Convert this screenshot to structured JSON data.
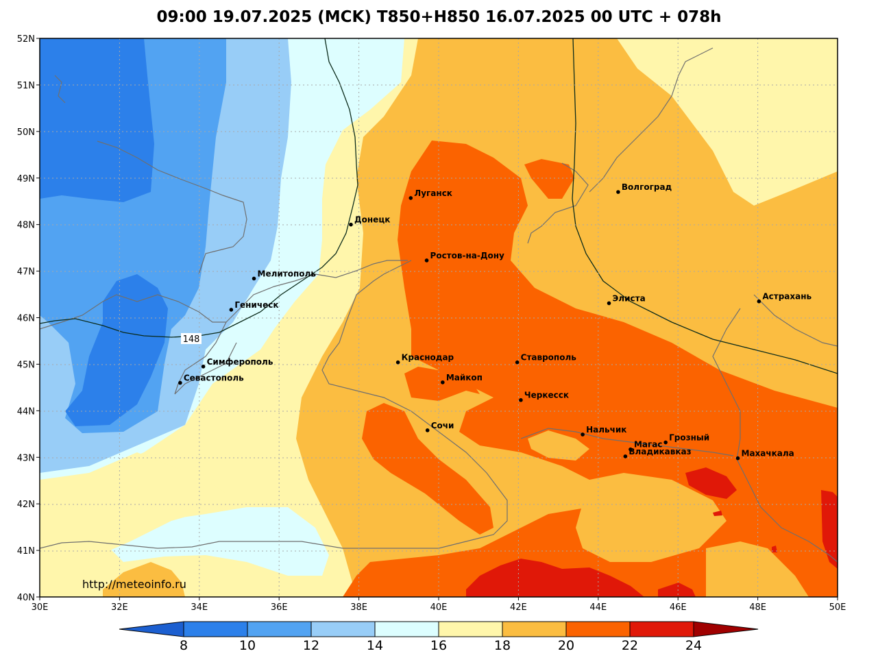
{
  "title": "09:00 19.07.2025 (MCK) T850+H850 16.07.2025 00 UTC + 078h",
  "watermark": "http://meteoinfo.ru",
  "map": {
    "lon_range": [
      30,
      50
    ],
    "lat_range": [
      40,
      52
    ],
    "lon_ticks": [
      "30E",
      "32E",
      "34E",
      "36E",
      "38E",
      "40E",
      "42E",
      "44E",
      "46E",
      "48E",
      "50E"
    ],
    "lat_ticks": [
      "40N",
      "41N",
      "42N",
      "43N",
      "44N",
      "45N",
      "46N",
      "47N",
      "48N",
      "49N",
      "50N",
      "51N",
      "52N"
    ],
    "grid": true,
    "contour_label": "148"
  },
  "cities": [
    {
      "name": "Луганск",
      "lon": 39.3,
      "lat": 48.57
    },
    {
      "name": "Волгоград",
      "lon": 44.5,
      "lat": 48.7
    },
    {
      "name": "Донецк",
      "lon": 37.8,
      "lat": 48.0
    },
    {
      "name": "Ростов-на-Дону",
      "lon": 39.7,
      "lat": 47.23
    },
    {
      "name": "Мелитополь",
      "lon": 35.37,
      "lat": 46.84
    },
    {
      "name": "Геническ",
      "lon": 34.8,
      "lat": 46.17
    },
    {
      "name": "Элиста",
      "lon": 44.27,
      "lat": 46.31
    },
    {
      "name": "Астрахань",
      "lon": 48.03,
      "lat": 46.35
    },
    {
      "name": "Симферополь",
      "lon": 34.1,
      "lat": 44.95
    },
    {
      "name": "Краснодар",
      "lon": 38.98,
      "lat": 45.04
    },
    {
      "name": "Ставрополь",
      "lon": 41.97,
      "lat": 45.04
    },
    {
      "name": "Севастополь",
      "lon": 33.52,
      "lat": 44.6
    },
    {
      "name": "Майкоп",
      "lon": 40.1,
      "lat": 44.61
    },
    {
      "name": "Черкесск",
      "lon": 42.06,
      "lat": 44.23
    },
    {
      "name": "Сочи",
      "lon": 39.72,
      "lat": 43.58
    },
    {
      "name": "Нальчик",
      "lon": 43.61,
      "lat": 43.49
    },
    {
      "name": "Грозный",
      "lon": 45.69,
      "lat": 43.32
    },
    {
      "name": "Магас",
      "lon": 44.81,
      "lat": 43.17
    },
    {
      "name": "Владикавказ",
      "lon": 44.68,
      "lat": 43.02
    },
    {
      "name": "Махачкала",
      "lon": 47.5,
      "lat": 42.98
    }
  ],
  "colorbar": {
    "labels": [
      "8",
      "10",
      "12",
      "14",
      "16",
      "18",
      "20",
      "22",
      "24"
    ],
    "colors": [
      "#1c5fd0",
      "#2c80ea",
      "#52a3f2",
      "#98cdf7",
      "#ddfeff",
      "#fff6ab",
      "#fbbd41",
      "#fb6300",
      "#e01808",
      "#a00000"
    ]
  }
}
